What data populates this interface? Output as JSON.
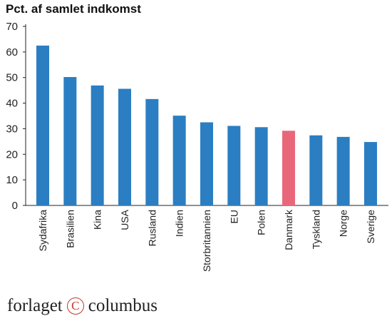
{
  "chart_data": {
    "type": "bar",
    "title": "Pct. af samlet indkomst",
    "xlabel": "",
    "ylabel": "",
    "ylim": [
      0,
      70
    ],
    "yticks": [
      0,
      10,
      20,
      30,
      40,
      50,
      60,
      70
    ],
    "grid": false,
    "categories": [
      "Sydafrika",
      "Brasilien",
      "Kina",
      "USA",
      "Rusland",
      "Indien",
      "Storbritannien",
      "EU",
      "Polen",
      "Danmark",
      "Tyskland",
      "Norge",
      "Sverige"
    ],
    "values": [
      62.5,
      50.2,
      46.9,
      45.6,
      41.6,
      35.1,
      32.5,
      31.1,
      30.6,
      29.2,
      27.4,
      26.8,
      24.8
    ],
    "colors": {
      "default": "#2b7ec2",
      "highlight": "#e8687a"
    },
    "highlight_category": "Danmark"
  },
  "publisher": {
    "left": "forlaget",
    "mark": "C",
    "right": "columbus"
  }
}
